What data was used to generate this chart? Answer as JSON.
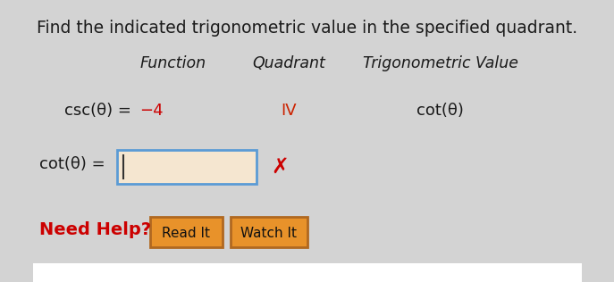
{
  "title": "Find the indicated trigonometric value in the specified quadrant.",
  "header_function": "Function",
  "header_quadrant": "Quadrant",
  "header_trig_value": "Trigonometric Value",
  "row_function": "csc(θ) = −4",
  "row_function_black": "csc(θ) = ",
  "row_function_red": "−4",
  "row_quadrant": "IV",
  "row_trig_value": "cot(θ)",
  "answer_label": "cot(θ) =",
  "need_help_text": "Need Help?",
  "btn1_text": "Read It",
  "btn2_text": "Watch It",
  "bg_color": "#d3d3d3",
  "white_bg": "#ffffff",
  "title_color": "#1a1a1a",
  "red_color": "#cc0000",
  "orange_btn_color": "#e8922a",
  "orange_btn_border": "#b06820",
  "need_help_color": "#cc0000",
  "input_box_border": "#5b9bd5",
  "input_box_fill": "#f5e6d0",
  "header_italic": true,
  "quadrant_color": "#cc2200"
}
